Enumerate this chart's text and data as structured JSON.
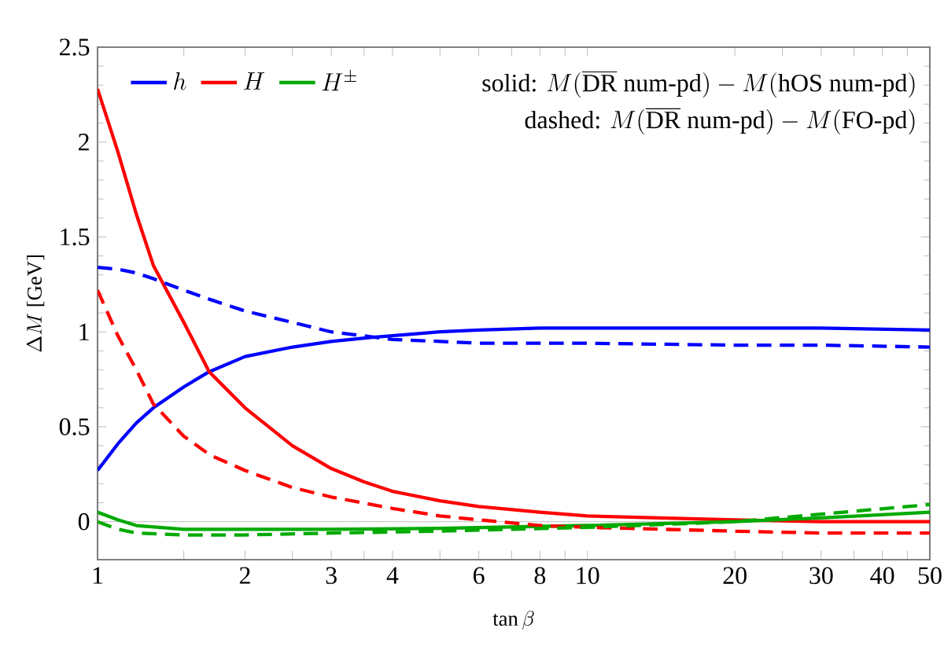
{
  "chart_data": {
    "type": "line",
    "xlabel": "\\tan\\beta",
    "ylabel": "\\Delta M\\ \\mbox{[GeV]}",
    "log": "x",
    "xlim": [
      1,
      50
    ],
    "ylim": [
      -0.2,
      2.5
    ],
    "xticks": [
      1,
      {
        "value": 1.5,
        "label": null
      },
      2,
      {
        "value": 2.5,
        "label": null
      },
      3,
      {
        "value": 3.5,
        "label": null
      },
      4,
      {
        "value": 5,
        "label": null
      },
      6,
      {
        "value": 7,
        "label": null
      },
      8,
      {
        "value": 9,
        "label": null
      },
      10,
      20,
      {
        "value": 25,
        "label": null
      },
      30,
      {
        "value": 35,
        "label": null
      },
      40,
      {
        "value": 45,
        "label": null
      },
      50
    ],
    "yticks": [
      0,
      0.5,
      1,
      1.5,
      2,
      2.5
    ],
    "legend": "top left",
    "grid": false,
    "marker": "none",
    "ref_lines": [
      {
        "axis": "y",
        "value": 0,
        "color": "#cccccc"
      }
    ],
    "annotations": [
      "\\mbox{solid: }M(\\overline{\\mbox{DR}}\\ \\mbox{num-pd})-M(\\mbox{hOS num-pd})",
      "\\mbox{dashed: }M(\\overline{\\mbox{DR}}\\ \\mbox{num-pd})-M(\\mbox{FO-pd})"
    ],
    "series": [
      {
        "name": "h",
        "color": "#0000ff",
        "line_style": "solid",
        "x": [
          1,
          1.1,
          1.2,
          1.3,
          1.5,
          1.69,
          2,
          2.5,
          3,
          3.6,
          4,
          5,
          6,
          8,
          10,
          20,
          30,
          50
        ],
        "values": [
          0.27,
          0.41,
          0.52,
          0.6,
          0.71,
          0.79,
          0.87,
          0.92,
          0.95,
          0.97,
          0.98,
          1.0,
          1.01,
          1.02,
          1.02,
          1.02,
          1.02,
          1.01
        ]
      },
      {
        "name": "H",
        "color": "#ff0000",
        "line_style": "solid",
        "x": [
          1,
          1.1,
          1.2,
          1.3,
          1.5,
          1.69,
          2,
          2.5,
          3,
          3.5,
          4,
          5,
          6,
          8,
          10,
          20,
          30,
          50
        ],
        "values": [
          2.28,
          1.95,
          1.62,
          1.35,
          1.05,
          0.79,
          0.6,
          0.4,
          0.28,
          0.21,
          0.16,
          0.11,
          0.08,
          0.05,
          0.03,
          0.01,
          0.0,
          0.0
        ]
      },
      {
        "name": "H^{\\pm}",
        "color": "#00aa00",
        "line_style": "solid",
        "x": [
          1,
          1.1,
          1.2,
          1.5,
          2,
          3,
          5,
          10,
          20,
          30,
          50
        ],
        "values": [
          0.05,
          0.01,
          -0.02,
          -0.04,
          -0.04,
          -0.04,
          -0.035,
          -0.02,
          0.0,
          0.02,
          0.05
        ]
      },
      {
        "color": "#0000ff",
        "line_style": "dashed",
        "x": [
          1,
          1.1,
          1.2,
          1.3,
          1.5,
          1.7,
          2,
          2.5,
          3,
          4,
          5,
          6,
          8,
          10,
          20,
          30,
          50
        ],
        "values": [
          1.34,
          1.33,
          1.31,
          1.28,
          1.22,
          1.17,
          1.11,
          1.05,
          1.0,
          0.96,
          0.95,
          0.94,
          0.94,
          0.94,
          0.93,
          0.93,
          0.92
        ]
      },
      {
        "color": "#ff0000",
        "line_style": "dashed",
        "x": [
          1,
          1.1,
          1.2,
          1.3,
          1.5,
          1.7,
          2,
          2.5,
          3,
          4,
          5,
          6,
          8,
          10,
          20,
          30,
          50
        ],
        "values": [
          1.22,
          0.98,
          0.8,
          0.62,
          0.45,
          0.35,
          0.27,
          0.18,
          0.13,
          0.07,
          0.03,
          0.01,
          -0.02,
          -0.03,
          -0.05,
          -0.06,
          -0.06
        ]
      },
      {
        "color": "#00aa00",
        "line_style": "dashed",
        "x": [
          1,
          1.1,
          1.2,
          1.5,
          2,
          3,
          5,
          10,
          20,
          30,
          50
        ],
        "values": [
          0.0,
          -0.04,
          -0.06,
          -0.07,
          -0.07,
          -0.06,
          -0.05,
          -0.03,
          0.0,
          0.04,
          0.09
        ]
      }
    ]
  }
}
